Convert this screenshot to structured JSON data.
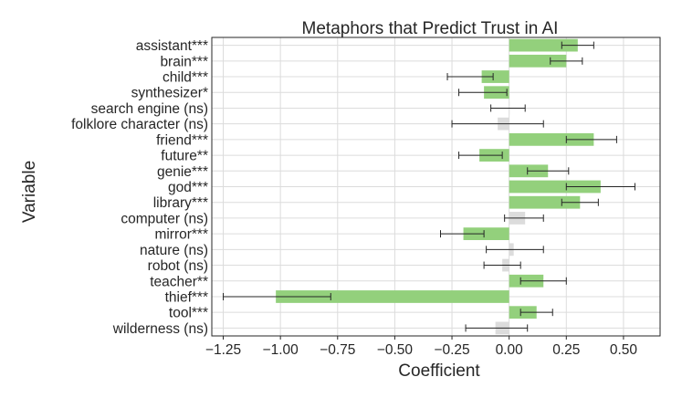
{
  "chart_data": {
    "type": "bar",
    "orientation": "horizontal",
    "title": "Metaphors that Predict Trust in AI",
    "xlabel": "Coefficient",
    "ylabel": "Variable",
    "xlim": [
      -1.3,
      0.66
    ],
    "xticks": [
      -1.25,
      -1.0,
      -0.75,
      -0.5,
      -0.25,
      0.0,
      0.25,
      0.5
    ],
    "xtick_labels": [
      "−1.25",
      "−1.00",
      "−0.75",
      "−0.50",
      "−0.25",
      "0.00",
      "0.25",
      "0.50"
    ],
    "grid": true,
    "colors": {
      "significant": "#93d07c",
      "not_significant": "#dcdcdc",
      "error_bar": "#262626",
      "grid": "#dcdcdc",
      "frame": "#262626"
    },
    "categories": [
      "assistant***",
      "brain***",
      "child***",
      "synthesizer*",
      "search engine (ns)",
      "folklore character (ns)",
      "friend***",
      "future**",
      "genie***",
      "god***",
      "library***",
      "computer (ns)",
      "mirror***",
      "nature (ns)",
      "robot (ns)",
      "teacher**",
      "thief***",
      "tool***",
      "wilderness (ns)"
    ],
    "values": [
      0.3,
      0.25,
      -0.12,
      -0.11,
      0.0,
      -0.05,
      0.37,
      -0.13,
      0.17,
      0.4,
      0.31,
      0.07,
      -0.2,
      0.02,
      -0.03,
      0.15,
      -1.02,
      0.12,
      -0.06
    ],
    "ci_low": [
      0.23,
      0.18,
      -0.27,
      -0.22,
      -0.08,
      -0.25,
      0.25,
      -0.22,
      0.08,
      0.25,
      0.23,
      -0.02,
      -0.3,
      -0.1,
      -0.11,
      0.05,
      -1.25,
      0.05,
      -0.19
    ],
    "ci_high": [
      0.37,
      0.32,
      -0.07,
      -0.01,
      0.07,
      0.15,
      0.47,
      -0.03,
      0.26,
      0.55,
      0.39,
      0.15,
      -0.11,
      0.15,
      0.05,
      0.25,
      -0.78,
      0.19,
      0.08
    ],
    "significant": [
      true,
      true,
      true,
      true,
      false,
      false,
      true,
      true,
      true,
      true,
      true,
      false,
      true,
      false,
      false,
      true,
      true,
      true,
      false
    ]
  }
}
